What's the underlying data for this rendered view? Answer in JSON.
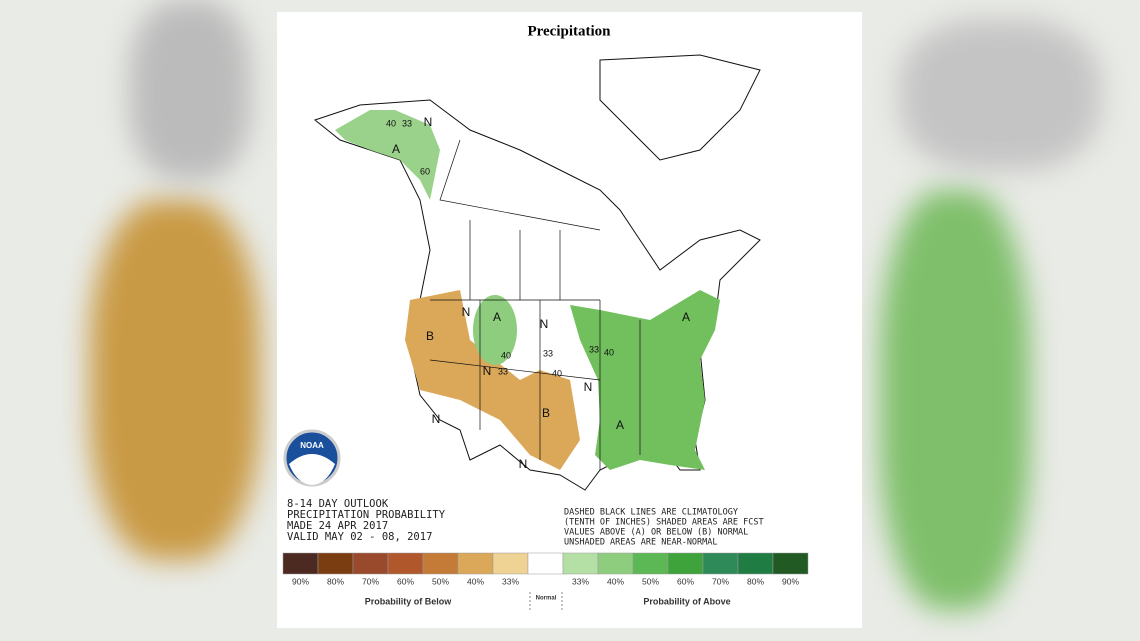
{
  "header": {
    "title": "Precipitation"
  },
  "map": {
    "labels": [
      "N",
      "40",
      "33",
      "A",
      "60",
      "B",
      "N",
      "A",
      "N",
      "40",
      "33",
      "N",
      "33",
      "40",
      "B",
      "N",
      "N",
      "N",
      "33",
      "40",
      "A",
      "A"
    ]
  },
  "logo": {
    "text": "NOAA"
  },
  "info": {
    "left": [
      "8-14 DAY OUTLOOK",
      "PRECIPITATION PROBABILITY",
      "MADE  24 APR 2017",
      "VALID  MAY 02 - 08, 2017"
    ],
    "right": [
      "DASHED BLACK LINES ARE CLIMATOLOGY",
      "(TENTH OF INCHES) SHADED AREAS ARE FCST",
      "VALUES ABOVE (A) OR BELOW (B) NORMAL",
      "UNSHADED AREAS ARE NEAR-NORMAL"
    ]
  },
  "legend": {
    "below": [
      {
        "label": "90%",
        "color": "#4d2a21"
      },
      {
        "label": "80%",
        "color": "#7a3d12"
      },
      {
        "label": "70%",
        "color": "#9a4a2c"
      },
      {
        "label": "60%",
        "color": "#b0582b"
      },
      {
        "label": "50%",
        "color": "#c47b37"
      },
      {
        "label": "40%",
        "color": "#dba85a"
      },
      {
        "label": "33%",
        "color": "#efd395"
      }
    ],
    "normal_color": "#ffffff",
    "above": [
      {
        "label": "33%",
        "color": "#b4e0a6"
      },
      {
        "label": "40%",
        "color": "#8fcd7e"
      },
      {
        "label": "50%",
        "color": "#5cb854"
      },
      {
        "label": "60%",
        "color": "#3ea33b"
      },
      {
        "label": "70%",
        "color": "#2e8a59"
      },
      {
        "label": "80%",
        "color": "#1f7d44"
      },
      {
        "label": "90%",
        "color": "#215a23"
      }
    ],
    "below_caption": "Probability of Below",
    "normal_caption": "Normal",
    "above_caption": "Probability of Above"
  }
}
